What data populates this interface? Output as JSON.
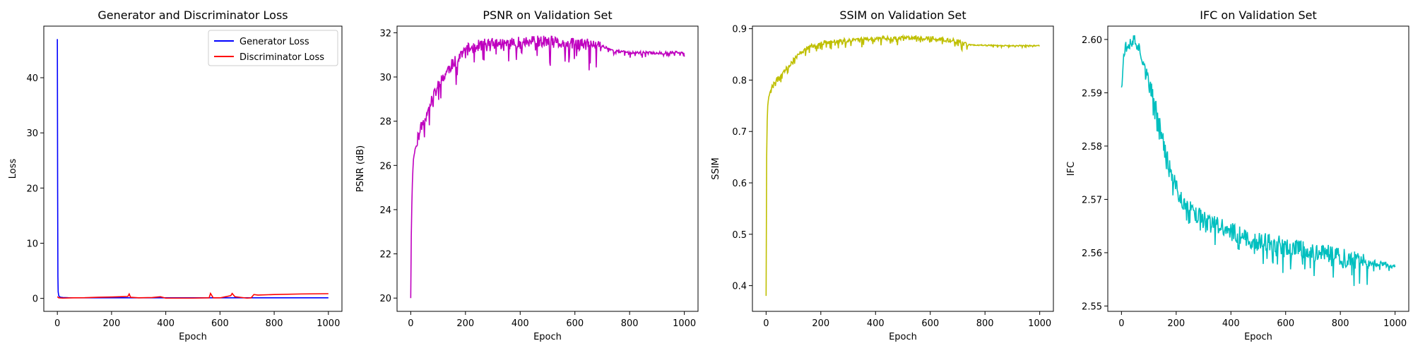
{
  "chart_data": [
    {
      "type": "line",
      "title": "Generator and Discriminator Loss",
      "xlabel": "Epoch",
      "ylabel": "Loss",
      "xlim": [
        -50,
        1050
      ],
      "ylim": [
        -2.35,
        49.35
      ],
      "xticks": [
        0,
        200,
        400,
        600,
        800,
        1000
      ],
      "yticks": [
        0,
        10,
        20,
        30,
        40
      ],
      "legend": "top-right",
      "series": [
        {
          "name": "Generator Loss",
          "color": "#0000ff",
          "x": [
            0,
            1,
            2,
            3,
            5,
            8,
            12,
            20,
            40,
            100,
            300,
            600,
            1000
          ],
          "y": [
            47.0,
            20.0,
            4.0,
            1.2,
            0.5,
            0.3,
            0.2,
            0.15,
            0.12,
            0.1,
            0.1,
            0.1,
            0.1
          ]
        },
        {
          "name": "Discriminator Loss",
          "color": "#ff0000",
          "x": [
            0,
            5,
            20,
            60,
            100,
            150,
            200,
            230,
            260,
            265,
            270,
            300,
            350,
            380,
            400,
            450,
            500,
            560,
            565,
            575,
            600,
            640,
            645,
            655,
            700,
            715,
            725,
            740,
            800,
            900,
            1000
          ],
          "y": [
            0.3,
            0.1,
            0.05,
            0.1,
            0.12,
            0.2,
            0.25,
            0.3,
            0.35,
            0.8,
            0.2,
            0.1,
            0.15,
            0.3,
            0.05,
            0.05,
            0.05,
            0.1,
            0.9,
            0.1,
            0.1,
            0.5,
            0.9,
            0.3,
            0.05,
            0.1,
            0.7,
            0.6,
            0.7,
            0.8,
            0.85
          ]
        }
      ]
    },
    {
      "type": "line",
      "title": "PSNR on Validation Set",
      "xlabel": "Epoch",
      "ylabel": "PSNR (dB)",
      "xlim": [
        -50,
        1050
      ],
      "ylim": [
        19.4,
        32.3
      ],
      "xticks": [
        0,
        200,
        400,
        600,
        800,
        1000
      ],
      "yticks": [
        20,
        22,
        24,
        26,
        28,
        30,
        32
      ],
      "series": [
        {
          "color": "#bf00bf",
          "x": [
            0,
            2,
            5,
            10,
            20,
            30,
            40,
            50,
            60,
            80,
            100,
            120,
            140,
            160,
            180,
            200,
            230,
            260,
            300,
            350,
            400,
            450,
            500,
            550,
            600,
            650,
            700,
            720,
            740,
            760,
            800,
            850,
            900,
            950,
            1000
          ],
          "y": [
            20.0,
            23.0,
            25.0,
            26.3,
            27.0,
            27.4,
            27.8,
            28.1,
            28.4,
            29.0,
            29.6,
            30.0,
            30.4,
            30.7,
            31.0,
            31.2,
            31.35,
            31.45,
            31.5,
            31.5,
            31.55,
            31.6,
            31.6,
            31.5,
            31.5,
            31.45,
            31.4,
            31.3,
            31.2,
            31.15,
            31.1,
            31.1,
            31.08,
            31.1,
            31.1
          ]
        }
      ]
    },
    {
      "type": "line",
      "title": "SSIM on Validation Set",
      "xlabel": "Epoch",
      "ylabel": "SSIM",
      "xlim": [
        -50,
        1050
      ],
      "ylim": [
        0.35,
        0.905
      ],
      "xticks": [
        0,
        200,
        400,
        600,
        800,
        1000
      ],
      "yticks": [
        0.4,
        0.5,
        0.6,
        0.7,
        0.8,
        0.9
      ],
      "series": [
        {
          "color": "#bfbf00",
          "x": [
            0,
            1,
            2,
            4,
            6,
            10,
            15,
            20,
            30,
            40,
            60,
            80,
            100,
            130,
            160,
            200,
            250,
            300,
            350,
            400,
            450,
            500,
            550,
            600,
            650,
            700,
            720,
            740,
            760,
            800,
            850,
            900,
            950,
            1000
          ],
          "y": [
            0.38,
            0.55,
            0.65,
            0.72,
            0.75,
            0.77,
            0.78,
            0.785,
            0.795,
            0.805,
            0.815,
            0.825,
            0.84,
            0.855,
            0.865,
            0.872,
            0.876,
            0.878,
            0.88,
            0.881,
            0.882,
            0.882,
            0.882,
            0.881,
            0.879,
            0.876,
            0.872,
            0.869,
            0.868,
            0.868,
            0.867,
            0.867,
            0.867,
            0.867
          ]
        }
      ]
    },
    {
      "type": "line",
      "title": "IFC on Validation Set",
      "xlabel": "Epoch",
      "ylabel": "IFC",
      "xlim": [
        -50,
        1050
      ],
      "ylim": [
        2.549,
        2.6025
      ],
      "xticks": [
        0,
        200,
        400,
        600,
        800,
        1000
      ],
      "yticks": [
        2.55,
        2.56,
        2.57,
        2.58,
        2.59,
        2.6
      ],
      "series": [
        {
          "color": "#00bfbf",
          "x": [
            0,
            10,
            20,
            40,
            60,
            80,
            100,
            120,
            140,
            160,
            180,
            200,
            220,
            250,
            280,
            300,
            350,
            400,
            450,
            500,
            550,
            600,
            650,
            700,
            750,
            800,
            850,
            900,
            950,
            1000
          ],
          "y": [
            2.591,
            2.598,
            2.599,
            2.6,
            2.599,
            2.596,
            2.592,
            2.588,
            2.584,
            2.579,
            2.575,
            2.572,
            2.57,
            2.568,
            2.567,
            2.566,
            2.565,
            2.564,
            2.563,
            2.562,
            2.562,
            2.561,
            2.561,
            2.56,
            2.56,
            2.559,
            2.559,
            2.558,
            2.558,
            2.5575
          ]
        }
      ]
    }
  ]
}
